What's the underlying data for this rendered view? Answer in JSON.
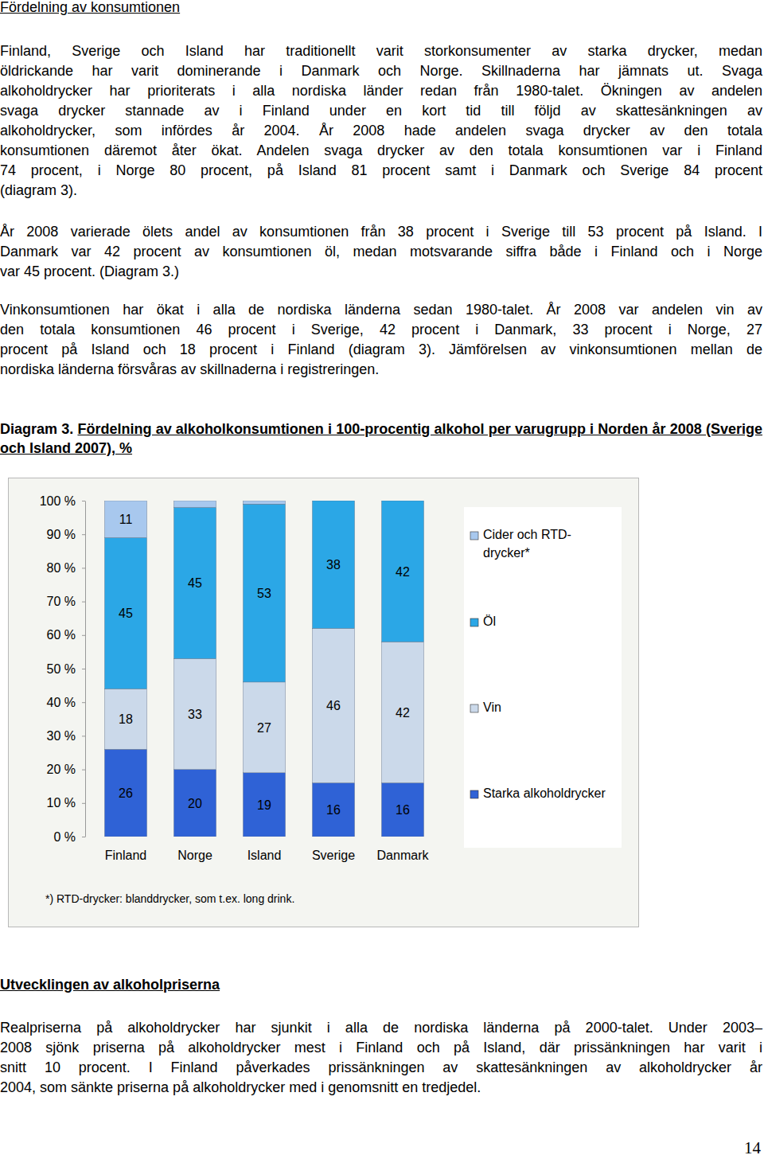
{
  "document": {
    "heading": "Fördelning av konsumtionen",
    "paragraphs": [
      [
        "Finland, Sverige och Island har traditionellt varit storkonsumenter av starka drycker, medan",
        "öldrickande har varit dominerande i Danmark och Norge. Skillnaderna har jämnats ut. Svaga",
        "alkoholdrycker har prioriterats i alla nordiska länder redan från 1980-talet. Ökningen av andelen",
        "svaga drycker stannade av i Finland under en kort tid till följd av skattesänkningen av",
        "alkoholdrycker, som infördes år 2004. År 2008 hade andelen svaga drycker av den totala",
        "konsumtionen däremot åter ökat. Andelen svaga drycker av den totala konsumtionen var i Finland",
        "74 procent, i Norge 80 procent, på Island 81 procent samt i Danmark och Sverige 84 procent",
        "(diagram 3)."
      ],
      [
        "År 2008 varierade ölets andel av konsumtionen från 38 procent i Sverige till 53 procent på Island. I",
        "Danmark var 42 procent av konsumtionen öl, medan motsvarande siffra både i Finland och i Norge",
        "var 45 procent. (Diagram 3.)"
      ],
      [
        "Vinkonsumtionen har ökat i alla de nordiska länderna sedan 1980-talet. År 2008 var andelen vin av",
        "den totala konsumtionen 46 procent i Sverige, 42 procent i Danmark, 33 procent i Norge, 27",
        "procent på Island och 18 procent i Finland (diagram 3). Jämförelsen av vinkonsumtionen mellan de",
        "nordiska länderna försvåras av skillnaderna i registreringen."
      ]
    ],
    "caption_label": "Diagram 3.",
    "heading2": "Utvecklingen av alkoholpriserna",
    "paragraphs_after": [
      [
        "Realpriserna på alkoholdrycker har sjunkit i alla de nordiska länderna på 2000-talet. Under 2003–",
        "2008 sjönk priserna på alkoholdrycker mest i Finland och på Island, där prissänkningen har varit i",
        "snitt 10 procent. I Finland påverkades prissänkningen av skattesänkningen av alkoholdrycker år",
        "2004, som sänkte priserna på alkoholdrycker med i genomsnitt en tredjedel."
      ]
    ],
    "page_number": "14"
  },
  "chart_data": {
    "type": "bar",
    "stacked": true,
    "title": "Fördelning av alkoholkonsumtionen i 100-procentig alkohol per varugrupp i Norden år 2008 (Sverige och Island 2007), %",
    "note": "*) RTD-drycker: blanddrycker, som t.ex. long drink.",
    "categories": [
      "Finland",
      "Norge",
      "Island",
      "Sverige",
      "Danmark"
    ],
    "series": [
      {
        "name": "Starka alkoholdrycker",
        "color": "#2f62d6",
        "values": [
          26,
          20,
          19,
          16,
          16
        ]
      },
      {
        "name": "Vin",
        "color": "#cbd9ea",
        "values": [
          18,
          33,
          27,
          46,
          42
        ]
      },
      {
        "name": "Öl",
        "color": "#2ba7e6",
        "values": [
          45,
          45,
          53,
          38,
          42
        ]
      },
      {
        "name": "Cider och RTD-drycker*",
        "color": "#a8c8ee",
        "values": [
          11,
          2,
          1,
          0,
          0
        ],
        "value_labels": [
          "11",
          null,
          null,
          null,
          null
        ]
      }
    ],
    "ylim": [
      0,
      100
    ],
    "yticks": [
      {
        "value": 0,
        "label": "0 %"
      },
      {
        "value": 10,
        "label": "10 %"
      },
      {
        "value": 20,
        "label": "20 %"
      },
      {
        "value": 30,
        "label": "30 %"
      },
      {
        "value": 40,
        "label": "40 %"
      },
      {
        "value": 50,
        "label": "50 %"
      },
      {
        "value": 60,
        "label": "60 %"
      },
      {
        "value": 70,
        "label": "70 %"
      },
      {
        "value": 80,
        "label": "80 %"
      },
      {
        "value": 90,
        "label": "90 %"
      },
      {
        "value": 100,
        "label": "100 %"
      }
    ],
    "data_labels": true,
    "grid": false,
    "legend": "right"
  }
}
